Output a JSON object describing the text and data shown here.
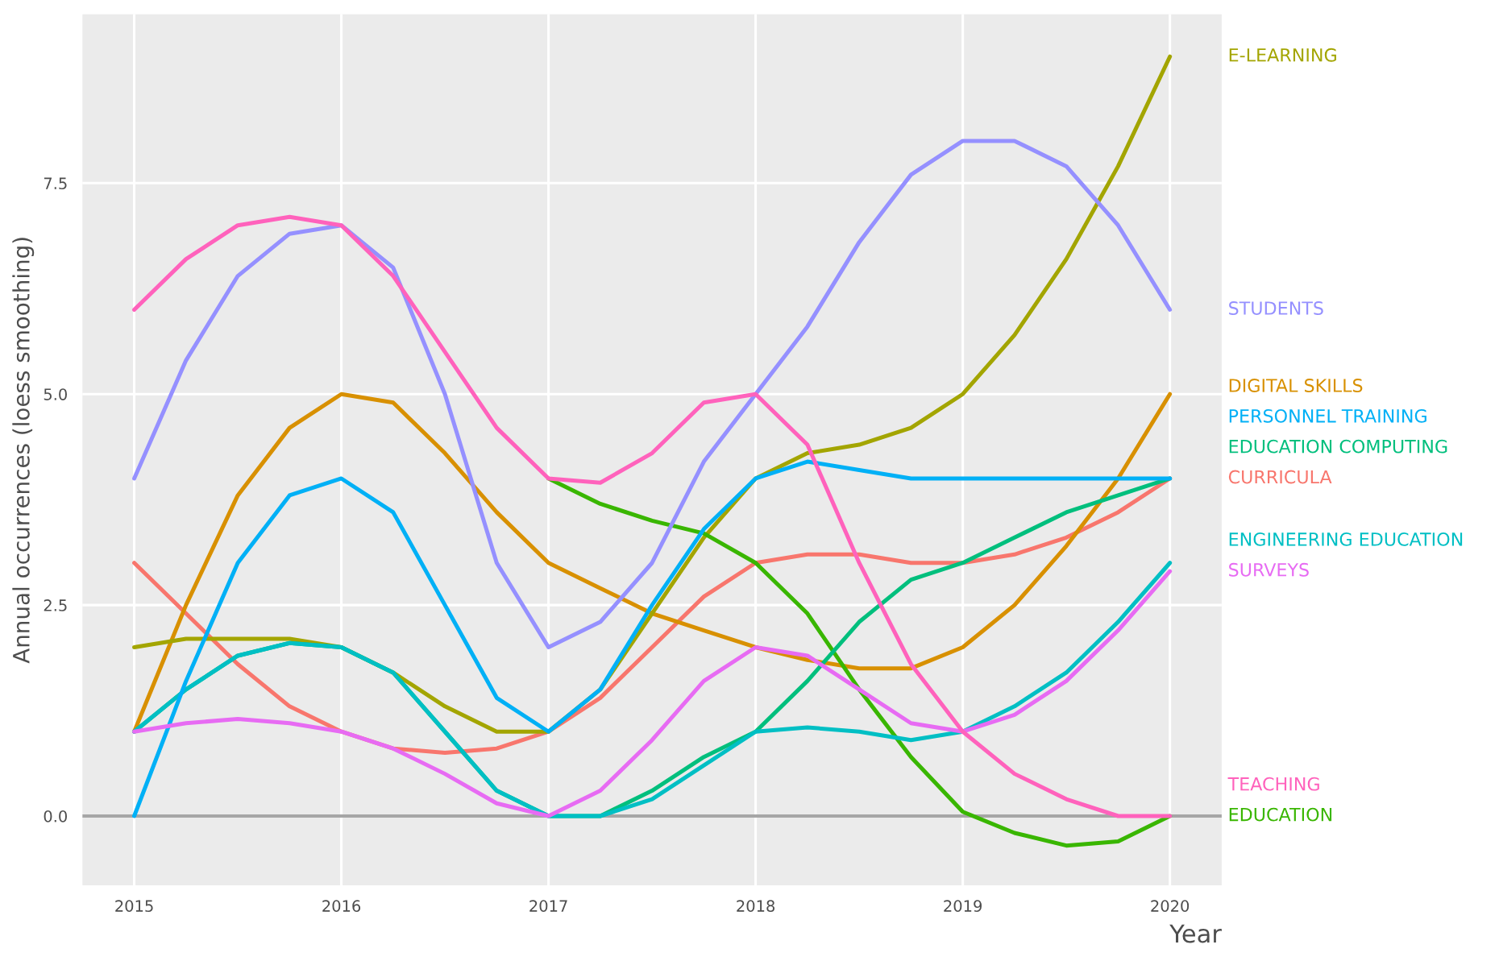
{
  "chart_data": {
    "type": "line",
    "xlabel": "Year",
    "ylabel": "Annual occurrences (loess smoothing)",
    "x": [
      2015,
      2015.25,
      2015.5,
      2015.75,
      2016,
      2016.25,
      2016.5,
      2016.75,
      2017,
      2017.25,
      2017.5,
      2017.75,
      2018,
      2018.25,
      2018.5,
      2018.75,
      2019,
      2019.25,
      2019.5,
      2019.75,
      2020
    ],
    "series": [
      {
        "name": "CURRICULA",
        "color": "#f8766d",
        "values": [
          3.0,
          2.4,
          1.8,
          1.3,
          1.0,
          0.8,
          0.75,
          0.8,
          1.0,
          1.4,
          2.0,
          2.6,
          3.0,
          3.1,
          3.1,
          3.0,
          3.0,
          3.1,
          3.3,
          3.6,
          4.0
        ]
      },
      {
        "name": "DIGITAL SKILLS",
        "color": "#d89000",
        "values": [
          1.0,
          2.5,
          3.8,
          4.6,
          5.0,
          4.9,
          4.3,
          3.6,
          3.0,
          2.7,
          2.4,
          2.2,
          2.0,
          1.85,
          1.75,
          1.75,
          2.0,
          2.5,
          3.2,
          4.0,
          5.0
        ]
      },
      {
        "name": "E-LEARNING",
        "color": "#a3a500",
        "values": [
          2.0,
          2.1,
          2.1,
          2.1,
          2.0,
          1.7,
          1.3,
          1.0,
          1.0,
          1.5,
          2.4,
          3.3,
          4.0,
          4.3,
          4.4,
          4.6,
          5.0,
          5.7,
          6.6,
          7.7,
          9.0
        ]
      },
      {
        "name": "EDUCATION",
        "color": "#39b600",
        "values": [
          null,
          null,
          null,
          null,
          null,
          null,
          null,
          null,
          4.0,
          3.7,
          3.5,
          3.35,
          3.0,
          2.4,
          1.5,
          0.7,
          0.05,
          -0.2,
          -0.35,
          -0.3,
          0.0
        ]
      },
      {
        "name": "EDUCATION COMPUTING",
        "color": "#00bf7d",
        "values": [
          1.0,
          1.5,
          1.9,
          2.05,
          2.0,
          1.7,
          1.0,
          0.3,
          0.0,
          0.0,
          0.3,
          0.7,
          1.0,
          1.6,
          2.3,
          2.8,
          3.0,
          3.3,
          3.6,
          3.8,
          4.0
        ]
      },
      {
        "name": "ENGINEERING EDUCATION",
        "color": "#00bfc4",
        "values": [
          1.0,
          1.5,
          1.9,
          2.05,
          2.0,
          1.7,
          1.0,
          0.3,
          0.0,
          0.0,
          0.2,
          0.6,
          1.0,
          1.05,
          1.0,
          0.9,
          1.0,
          1.3,
          1.7,
          2.3,
          3.0
        ]
      },
      {
        "name": "PERSONNEL TRAINING",
        "color": "#00b0f6",
        "values": [
          0.0,
          1.6,
          3.0,
          3.8,
          4.0,
          3.6,
          2.5,
          1.4,
          1.0,
          1.5,
          2.5,
          3.4,
          4.0,
          4.2,
          4.1,
          4.0,
          4.0,
          4.0,
          4.0,
          4.0,
          4.0
        ]
      },
      {
        "name": "STUDENTS",
        "color": "#9590ff",
        "values": [
          4.0,
          5.4,
          6.4,
          6.9,
          7.0,
          6.5,
          5.0,
          3.0,
          2.0,
          2.3,
          3.0,
          4.2,
          5.0,
          5.8,
          6.8,
          7.6,
          8.0,
          8.0,
          7.7,
          7.0,
          6.0
        ]
      },
      {
        "name": "SURVEYS",
        "color": "#e76bf3",
        "values": [
          1.0,
          1.1,
          1.15,
          1.1,
          1.0,
          0.8,
          0.5,
          0.15,
          0.0,
          0.3,
          0.9,
          1.6,
          2.0,
          1.9,
          1.5,
          1.1,
          1.0,
          1.2,
          1.6,
          2.2,
          2.9
        ]
      },
      {
        "name": "TEACHING",
        "color": "#ff62bc",
        "values": [
          6.0,
          6.6,
          7.0,
          7.1,
          7.0,
          6.4,
          5.5,
          4.6,
          4.0,
          3.95,
          4.3,
          4.9,
          5.0,
          4.4,
          3.0,
          1.8,
          1.0,
          0.5,
          0.2,
          0.0,
          0.0
        ]
      }
    ],
    "xlim": [
      2014.75,
      2020.25
    ],
    "xticks": [
      2015,
      2016,
      2017,
      2018,
      2019,
      2020
    ],
    "ylim": [
      -0.82,
      9.5
    ],
    "yticks": [
      {
        "value": 0,
        "label": "0.0"
      },
      {
        "value": 2.5,
        "label": "2.5"
      },
      {
        "value": 5,
        "label": "5.0"
      },
      {
        "value": 7.5,
        "label": "7.5"
      }
    ],
    "ref_lines": [
      {
        "axis": "y",
        "value": 0,
        "color": "#a6a6a6"
      }
    ],
    "grid": true,
    "legend": false,
    "line_style": "solid"
  }
}
